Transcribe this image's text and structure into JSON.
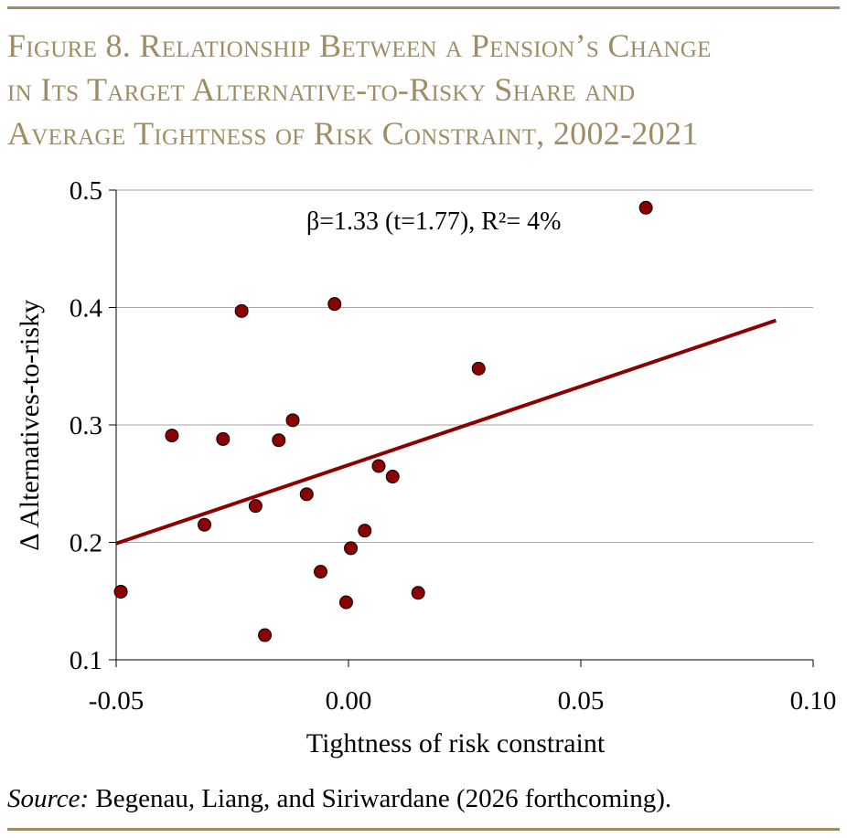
{
  "figure": {
    "title_lines": [
      "Figure 8. Relationship Between a Pension’s Change",
      "in Its Target Alternative-to-Risky Share and",
      "Average Tightness of Risk Constraint, 2002-2021"
    ],
    "source_label": "Source:",
    "source_text": " Begenau, Liang, and Siriwardane (2026 forthcoming)."
  },
  "colors": {
    "accent": "#a08c62",
    "point_fill": "#8b0000",
    "trend_line": "#8b0000",
    "gridline": "#a6a6a6"
  },
  "chart_data": {
    "type": "scatter",
    "xlabel": "Tightness of risk constraint",
    "ylabel": "∆ Alternatives-to-risky",
    "xlim": [
      -0.05,
      0.1
    ],
    "ylim": [
      0.1,
      0.5
    ],
    "x_ticks": [
      -0.05,
      0.0,
      0.05,
      0.1
    ],
    "x_tick_labels": [
      "-0.05",
      "0.00",
      "0.05",
      "0.10"
    ],
    "y_ticks": [
      0.1,
      0.2,
      0.3,
      0.4,
      0.5
    ],
    "y_tick_labels": [
      "0.1",
      "0.2",
      "0.3",
      "0.4",
      "0.5"
    ],
    "grid": "horizontal",
    "annotation": "β=1.33 (t=1.77), R²= 4%",
    "points": [
      {
        "x": -0.049,
        "y": 0.158
      },
      {
        "x": -0.038,
        "y": 0.291
      },
      {
        "x": -0.031,
        "y": 0.215
      },
      {
        "x": -0.027,
        "y": 0.288
      },
      {
        "x": -0.023,
        "y": 0.397
      },
      {
        "x": -0.02,
        "y": 0.231
      },
      {
        "x": -0.018,
        "y": 0.121
      },
      {
        "x": -0.015,
        "y": 0.287
      },
      {
        "x": -0.012,
        "y": 0.304
      },
      {
        "x": -0.009,
        "y": 0.241
      },
      {
        "x": -0.006,
        "y": 0.175
      },
      {
        "x": -0.003,
        "y": 0.403
      },
      {
        "x": -0.0005,
        "y": 0.149
      },
      {
        "x": 0.0005,
        "y": 0.195
      },
      {
        "x": 0.0035,
        "y": 0.21
      },
      {
        "x": 0.0065,
        "y": 0.265
      },
      {
        "x": 0.0095,
        "y": 0.256
      },
      {
        "x": 0.015,
        "y": 0.157
      },
      {
        "x": 0.028,
        "y": 0.348
      },
      {
        "x": 0.064,
        "y": 0.485
      }
    ],
    "fit_line": {
      "x": [
        -0.05,
        0.092
      ],
      "y": [
        0.199,
        0.389
      ]
    }
  }
}
